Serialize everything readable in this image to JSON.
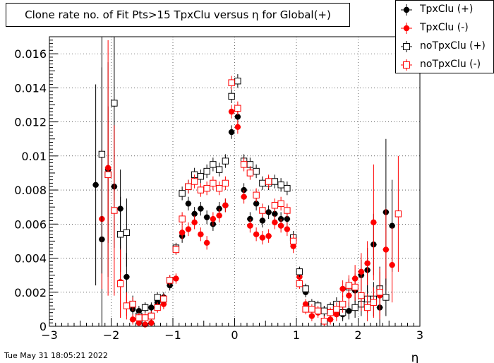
{
  "timestamp": "Tue May 31 18:05:21 2022",
  "chart_data": {
    "type": "scatter",
    "title": "Clone rate no. of Fit Pts>15 TpxClu versus η for Global(+)",
    "xlabel": "η",
    "ylabel": "",
    "xlim": [
      -3,
      3
    ],
    "ylim": [
      0,
      0.017
    ],
    "xticks": [
      "−3",
      "−2",
      "−1",
      "0",
      "1",
      "2",
      "3"
    ],
    "yticks": [
      "0",
      "0.002",
      "0.004",
      "0.006",
      "0.008",
      "0.01",
      "0.012",
      "0.014",
      "0.016"
    ],
    "grid": true,
    "legend_position": "top-right",
    "series": [
      {
        "name": "TpxClu (+)",
        "color": "#000000",
        "marker": "filled-circle",
        "points": [
          {
            "x": -2.25,
            "y": 0.0083,
            "err": 0.0059
          },
          {
            "x": -2.15,
            "y": 0.0051,
            "err": 0.0101
          },
          {
            "x": -2.05,
            "y": 0.0092,
            "err": 0.0063
          },
          {
            "x": -1.95,
            "y": 0.0082,
            "err": 0.0036
          },
          {
            "x": -1.85,
            "y": 0.0069,
            "err": 0.0023
          },
          {
            "x": -1.75,
            "y": 0.0029,
            "err": 0.0014
          },
          {
            "x": -1.65,
            "y": 0.001,
            "err": 0.0004
          },
          {
            "x": -1.55,
            "y": 0.0009,
            "err": 0.0003
          },
          {
            "x": -1.45,
            "y": 0.0011,
            "err": 0.0003
          },
          {
            "x": -1.35,
            "y": 0.0011,
            "err": 0.0003
          },
          {
            "x": -1.25,
            "y": 0.0014,
            "err": 0.0003
          },
          {
            "x": -1.15,
            "y": 0.0017,
            "err": 0.0003
          },
          {
            "x": -1.05,
            "y": 0.0024,
            "err": 0.0003
          },
          {
            "x": -0.95,
            "y": 0.0045,
            "err": 0.0003
          },
          {
            "x": -0.85,
            "y": 0.0053,
            "err": 0.0004
          },
          {
            "x": -0.75,
            "y": 0.0072,
            "err": 0.0004
          },
          {
            "x": -0.65,
            "y": 0.0066,
            "err": 0.0004
          },
          {
            "x": -0.55,
            "y": 0.0069,
            "err": 0.0004
          },
          {
            "x": -0.45,
            "y": 0.0064,
            "err": 0.0004
          },
          {
            "x": -0.35,
            "y": 0.006,
            "err": 0.0004
          },
          {
            "x": -0.25,
            "y": 0.0069,
            "err": 0.0004
          },
          {
            "x": -0.15,
            "y": 0.0071,
            "err": 0.0004
          },
          {
            "x": -0.05,
            "y": 0.0114,
            "err": 0.0004
          },
          {
            "x": 0.05,
            "y": 0.0123,
            "err": 0.0004
          },
          {
            "x": 0.15,
            "y": 0.008,
            "err": 0.0004
          },
          {
            "x": 0.25,
            "y": 0.0063,
            "err": 0.0004
          },
          {
            "x": 0.35,
            "y": 0.0072,
            "err": 0.0004
          },
          {
            "x": 0.45,
            "y": 0.0062,
            "err": 0.0004
          },
          {
            "x": 0.55,
            "y": 0.0067,
            "err": 0.0004
          },
          {
            "x": 0.65,
            "y": 0.0066,
            "err": 0.0004
          },
          {
            "x": 0.75,
            "y": 0.0063,
            "err": 0.0004
          },
          {
            "x": 0.85,
            "y": 0.0063,
            "err": 0.0004
          },
          {
            "x": 0.95,
            "y": 0.0049,
            "err": 0.0004
          },
          {
            "x": 1.05,
            "y": 0.0031,
            "err": 0.0003
          },
          {
            "x": 1.15,
            "y": 0.002,
            "err": 0.0003
          },
          {
            "x": 1.25,
            "y": 0.0012,
            "err": 0.0003
          },
          {
            "x": 1.35,
            "y": 0.001,
            "err": 0.0003
          },
          {
            "x": 1.45,
            "y": 0.0009,
            "err": 0.0003
          },
          {
            "x": 1.55,
            "y": 0.0008,
            "err": 0.0003
          },
          {
            "x": 1.65,
            "y": 0.0009,
            "err": 0.0004
          },
          {
            "x": 1.75,
            "y": 0.0007,
            "err": 0.0004
          },
          {
            "x": 1.85,
            "y": 0.0009,
            "err": 0.0005
          },
          {
            "x": 1.95,
            "y": 0.0021,
            "err": 0.0007
          },
          {
            "x": 2.05,
            "y": 0.003,
            "err": 0.0009
          },
          {
            "x": 2.15,
            "y": 0.0033,
            "err": 0.0013
          },
          {
            "x": 2.25,
            "y": 0.0048,
            "err": 0.0018
          },
          {
            "x": 2.35,
            "y": 0.0011,
            "err": 0.0014
          },
          {
            "x": 2.45,
            "y": 0.0067,
            "err": 0.0043
          },
          {
            "x": 2.55,
            "y": 0.0059,
            "err": 0.0027
          }
        ]
      },
      {
        "name": "TpxClu (-)",
        "color": "#ff0000",
        "marker": "filled-circle",
        "points": [
          {
            "x": -2.15,
            "y": 0.0063,
            "err": 0.0041
          },
          {
            "x": -2.05,
            "y": 0.0093,
            "err": 0.0075
          },
          {
            "x": -1.85,
            "y": 0.0026,
            "err": 0.0021
          },
          {
            "x": -1.75,
            "y": 0.0012,
            "err": 0.0006
          },
          {
            "x": -1.65,
            "y": 0.0004,
            "err": 0.0003
          },
          {
            "x": -1.55,
            "y": 0.0002,
            "err": 0.0002
          },
          {
            "x": -1.45,
            "y": 0.0001,
            "err": 0.0002
          },
          {
            "x": -1.35,
            "y": 0.0002,
            "err": 0.0002
          },
          {
            "x": -1.25,
            "y": 0.0011,
            "err": 0.0003
          },
          {
            "x": -1.15,
            "y": 0.0013,
            "err": 0.0003
          },
          {
            "x": -1.05,
            "y": 0.0027,
            "err": 0.0003
          },
          {
            "x": -0.95,
            "y": 0.0028,
            "err": 0.0003
          },
          {
            "x": -0.85,
            "y": 0.0055,
            "err": 0.0004
          },
          {
            "x": -0.75,
            "y": 0.0057,
            "err": 0.0004
          },
          {
            "x": -0.65,
            "y": 0.0061,
            "err": 0.0004
          },
          {
            "x": -0.55,
            "y": 0.0054,
            "err": 0.0004
          },
          {
            "x": -0.45,
            "y": 0.0049,
            "err": 0.0004
          },
          {
            "x": -0.35,
            "y": 0.0063,
            "err": 0.0004
          },
          {
            "x": -0.25,
            "y": 0.0065,
            "err": 0.0004
          },
          {
            "x": -0.15,
            "y": 0.0071,
            "err": 0.0004
          },
          {
            "x": -0.05,
            "y": 0.0126,
            "err": 0.0004
          },
          {
            "x": 0.05,
            "y": 0.0117,
            "err": 0.0004
          },
          {
            "x": 0.15,
            "y": 0.0076,
            "err": 0.0004
          },
          {
            "x": 0.25,
            "y": 0.0059,
            "err": 0.0004
          },
          {
            "x": 0.35,
            "y": 0.0054,
            "err": 0.0004
          },
          {
            "x": 0.45,
            "y": 0.0052,
            "err": 0.0004
          },
          {
            "x": 0.55,
            "y": 0.0053,
            "err": 0.0004
          },
          {
            "x": 0.65,
            "y": 0.0061,
            "err": 0.0004
          },
          {
            "x": 0.75,
            "y": 0.0059,
            "err": 0.0004
          },
          {
            "x": 0.85,
            "y": 0.0057,
            "err": 0.0004
          },
          {
            "x": 0.95,
            "y": 0.0047,
            "err": 0.0004
          },
          {
            "x": 1.05,
            "y": 0.0029,
            "err": 0.0003
          },
          {
            "x": 1.15,
            "y": 0.0013,
            "err": 0.0003
          },
          {
            "x": 1.25,
            "y": 0.0006,
            "err": 0.0003
          },
          {
            "x": 1.35,
            "y": 0.0008,
            "err": 0.0003
          },
          {
            "x": 1.45,
            "y": 0.0003,
            "err": 0.0003
          },
          {
            "x": 1.55,
            "y": 0.0004,
            "err": 0.0003
          },
          {
            "x": 1.65,
            "y": 0.0007,
            "err": 0.0004
          },
          {
            "x": 1.75,
            "y": 0.0022,
            "err": 0.0005
          },
          {
            "x": 1.85,
            "y": 0.0018,
            "err": 0.0006
          },
          {
            "x": 1.95,
            "y": 0.0028,
            "err": 0.0008
          },
          {
            "x": 2.05,
            "y": 0.0032,
            "err": 0.0011
          },
          {
            "x": 2.15,
            "y": 0.0037,
            "err": 0.0013
          },
          {
            "x": 2.25,
            "y": 0.0061,
            "err": 0.0034
          },
          {
            "x": 2.35,
            "y": 0.0018,
            "err": 0.0014
          },
          {
            "x": 2.45,
            "y": 0.0045,
            "err": 0.0024
          },
          {
            "x": 2.55,
            "y": 0.0036,
            "err": 0.0022
          }
        ]
      },
      {
        "name": "noTpxClu (+)",
        "color": "#000000",
        "marker": "open-square",
        "points": [
          {
            "x": -2.15,
            "y": 0.0101,
            "err": 0.007
          },
          {
            "x": -2.05,
            "y": 0.0089,
            "err": 0.004
          },
          {
            "x": -1.95,
            "y": 0.0131,
            "err": 0.0057
          },
          {
            "x": -1.85,
            "y": 0.0054,
            "err": 0.0022
          },
          {
            "x": -1.75,
            "y": 0.0055,
            "err": 0.002
          },
          {
            "x": -1.65,
            "y": 0.0013,
            "err": 0.0005
          },
          {
            "x": -1.55,
            "y": 0.0006,
            "err": 0.0003
          },
          {
            "x": -1.45,
            "y": 0.0011,
            "err": 0.0003
          },
          {
            "x": -1.35,
            "y": 0.0006,
            "err": 0.0003
          },
          {
            "x": -1.25,
            "y": 0.0017,
            "err": 0.0003
          },
          {
            "x": -1.15,
            "y": 0.0016,
            "err": 0.0003
          },
          {
            "x": -1.05,
            "y": 0.0027,
            "err": 0.0003
          },
          {
            "x": -0.95,
            "y": 0.0046,
            "err": 0.0003
          },
          {
            "x": -0.85,
            "y": 0.0078,
            "err": 0.0004
          },
          {
            "x": -0.75,
            "y": 0.0082,
            "err": 0.0004
          },
          {
            "x": -0.65,
            "y": 0.0089,
            "err": 0.0004
          },
          {
            "x": -0.55,
            "y": 0.0088,
            "err": 0.0004
          },
          {
            "x": -0.45,
            "y": 0.0091,
            "err": 0.0004
          },
          {
            "x": -0.35,
            "y": 0.0095,
            "err": 0.0004
          },
          {
            "x": -0.25,
            "y": 0.0092,
            "err": 0.0004
          },
          {
            "x": -0.15,
            "y": 0.0097,
            "err": 0.0004
          },
          {
            "x": -0.05,
            "y": 0.0135,
            "err": 0.0004
          },
          {
            "x": 0.05,
            "y": 0.0144,
            "err": 0.0004
          },
          {
            "x": 0.15,
            "y": 0.0097,
            "err": 0.0004
          },
          {
            "x": 0.25,
            "y": 0.0095,
            "err": 0.0004
          },
          {
            "x": 0.35,
            "y": 0.0091,
            "err": 0.0004
          },
          {
            "x": 0.45,
            "y": 0.0084,
            "err": 0.0004
          },
          {
            "x": 0.55,
            "y": 0.0084,
            "err": 0.0004
          },
          {
            "x": 0.65,
            "y": 0.0085,
            "err": 0.0004
          },
          {
            "x": 0.75,
            "y": 0.0083,
            "err": 0.0004
          },
          {
            "x": 0.85,
            "y": 0.0081,
            "err": 0.0004
          },
          {
            "x": 0.95,
            "y": 0.0052,
            "err": 0.0004
          },
          {
            "x": 1.05,
            "y": 0.0032,
            "err": 0.0003
          },
          {
            "x": 1.15,
            "y": 0.0022,
            "err": 0.0003
          },
          {
            "x": 1.25,
            "y": 0.0013,
            "err": 0.0003
          },
          {
            "x": 1.35,
            "y": 0.0012,
            "err": 0.0003
          },
          {
            "x": 1.45,
            "y": 0.0009,
            "err": 0.0003
          },
          {
            "x": 1.55,
            "y": 0.0011,
            "err": 0.0003
          },
          {
            "x": 1.65,
            "y": 0.0013,
            "err": 0.0004
          },
          {
            "x": 1.75,
            "y": 0.0008,
            "err": 0.0004
          },
          {
            "x": 1.85,
            "y": 0.0023,
            "err": 0.0005
          },
          {
            "x": 1.95,
            "y": 0.0011,
            "err": 0.0006
          },
          {
            "x": 2.05,
            "y": 0.0013,
            "err": 0.0007
          },
          {
            "x": 2.15,
            "y": 0.0016,
            "err": 0.0008
          },
          {
            "x": 2.25,
            "y": 0.0016,
            "err": 0.001
          },
          {
            "x": 2.35,
            "y": 0.0022,
            "err": 0.0013
          },
          {
            "x": 2.45,
            "y": 0.0017,
            "err": 0.0011
          }
        ]
      },
      {
        "name": "noTpxClu (-)",
        "color": "#ff0000",
        "marker": "open-square",
        "points": [
          {
            "x": -2.05,
            "y": 0.0089,
            "err": 0.004
          },
          {
            "x": -1.95,
            "y": 0.0068,
            "err": 0.005
          },
          {
            "x": -1.85,
            "y": 0.0025,
            "err": 0.002
          },
          {
            "x": -1.75,
            "y": 0.0012,
            "err": 0.0008
          },
          {
            "x": -1.65,
            "y": 0.0013,
            "err": 0.0004
          },
          {
            "x": -1.55,
            "y": 0.0005,
            "err": 0.0003
          },
          {
            "x": -1.45,
            "y": 0.0005,
            "err": 0.0003
          },
          {
            "x": -1.35,
            "y": 0.0006,
            "err": 0.0003
          },
          {
            "x": -1.25,
            "y": 0.0011,
            "err": 0.0003
          },
          {
            "x": -1.15,
            "y": 0.0016,
            "err": 0.0003
          },
          {
            "x": -1.05,
            "y": 0.0027,
            "err": 0.0003
          },
          {
            "x": -0.95,
            "y": 0.0045,
            "err": 0.0003
          },
          {
            "x": -0.85,
            "y": 0.0063,
            "err": 0.0004
          },
          {
            "x": -0.75,
            "y": 0.0082,
            "err": 0.0004
          },
          {
            "x": -0.65,
            "y": 0.0085,
            "err": 0.0004
          },
          {
            "x": -0.55,
            "y": 0.008,
            "err": 0.0004
          },
          {
            "x": -0.45,
            "y": 0.0081,
            "err": 0.0004
          },
          {
            "x": -0.35,
            "y": 0.0084,
            "err": 0.0004
          },
          {
            "x": -0.25,
            "y": 0.0081,
            "err": 0.0004
          },
          {
            "x": -0.15,
            "y": 0.0084,
            "err": 0.0004
          },
          {
            "x": -0.05,
            "y": 0.0143,
            "err": 0.0004
          },
          {
            "x": 0.05,
            "y": 0.0128,
            "err": 0.0004
          },
          {
            "x": 0.15,
            "y": 0.0095,
            "err": 0.0004
          },
          {
            "x": 0.25,
            "y": 0.009,
            "err": 0.0004
          },
          {
            "x": 0.35,
            "y": 0.0077,
            "err": 0.0004
          },
          {
            "x": 0.45,
            "y": 0.0068,
            "err": 0.0004
          },
          {
            "x": 0.55,
            "y": 0.0085,
            "err": 0.0004
          },
          {
            "x": 0.65,
            "y": 0.0071,
            "err": 0.0004
          },
          {
            "x": 0.75,
            "y": 0.0072,
            "err": 0.0004
          },
          {
            "x": 0.85,
            "y": 0.0068,
            "err": 0.0004
          },
          {
            "x": 0.95,
            "y": 0.005,
            "err": 0.0004
          },
          {
            "x": 1.05,
            "y": 0.0025,
            "err": 0.0003
          },
          {
            "x": 1.15,
            "y": 0.001,
            "err": 0.0003
          },
          {
            "x": 1.25,
            "y": 0.001,
            "err": 0.0003
          },
          {
            "x": 1.35,
            "y": 0.0009,
            "err": 0.0003
          },
          {
            "x": 1.45,
            "y": 0.0003,
            "err": 0.0003
          },
          {
            "x": 1.55,
            "y": 0.0008,
            "err": 0.0003
          },
          {
            "x": 1.65,
            "y": 0.001,
            "err": 0.0004
          },
          {
            "x": 1.75,
            "y": 0.0013,
            "err": 0.0005
          },
          {
            "x": 1.85,
            "y": 0.0024,
            "err": 0.0006
          },
          {
            "x": 1.95,
            "y": 0.0023,
            "err": 0.0008
          },
          {
            "x": 2.05,
            "y": 0.0018,
            "err": 0.0009
          },
          {
            "x": 2.15,
            "y": 0.0011,
            "err": 0.0008
          },
          {
            "x": 2.25,
            "y": 0.0014,
            "err": 0.0009
          },
          {
            "x": 2.35,
            "y": 0.002,
            "err": 0.0014
          },
          {
            "x": 2.65,
            "y": 0.0066,
            "err": 0.0034
          }
        ]
      }
    ]
  }
}
